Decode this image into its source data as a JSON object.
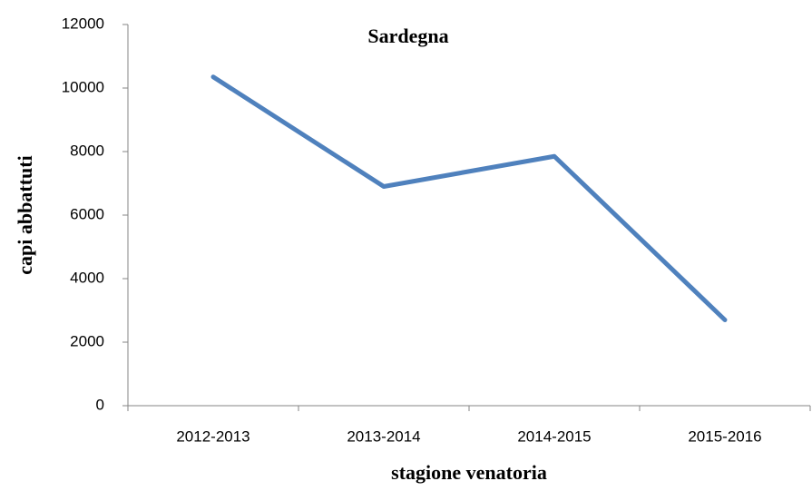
{
  "chart_data": {
    "type": "line",
    "title": "Sardegna",
    "x_label": "stagione venatoria",
    "y_label": "capi abbattuti",
    "categories": [
      "2012-2013",
      "2013-2014",
      "2014-2015",
      "2015-2016"
    ],
    "series": [
      {
        "name": "capi abbattuti",
        "color": "#4f81bd",
        "values": [
          10350,
          6900,
          7850,
          2700
        ]
      }
    ],
    "ylim": [
      0,
      12000
    ],
    "yticks": [
      0,
      2000,
      4000,
      6000,
      8000,
      10000,
      12000
    ],
    "grid": false
  }
}
